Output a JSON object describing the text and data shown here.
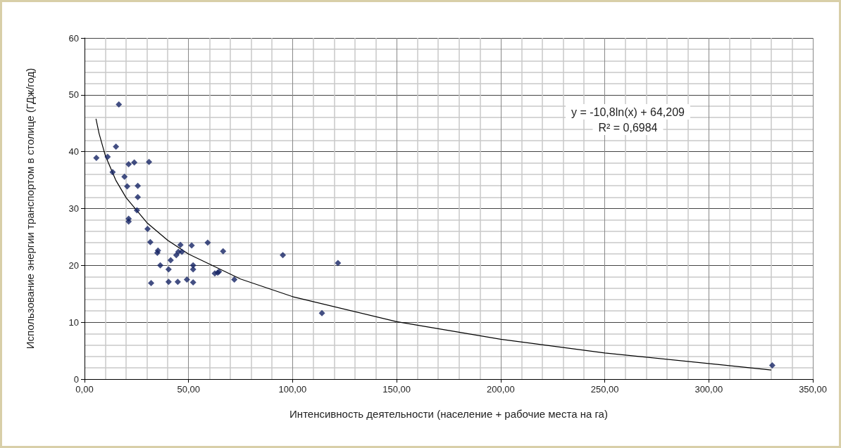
{
  "chart_data": {
    "type": "scatter",
    "xlabel": "Интенсивность деятельности (население + рабочие места на га)",
    "ylabel": "Использование энергии транспортом в столице (ГДж/год)",
    "annotations": [
      "y = -10,8ln(x) + 64,209",
      "R² = 0,6984"
    ],
    "series": [
      {
        "color": "#142364",
        "x": [
          5.7,
          11.1,
          16.5,
          15.1,
          13.5,
          19.2,
          20.5,
          21.2,
          23.9,
          31.0,
          25.6,
          25.6,
          25.2,
          21.2,
          21.2,
          30.3,
          31.6,
          35.3,
          35.0,
          36.4,
          32.0,
          41.4,
          40.4,
          40.4,
          44.8,
          49.2,
          52.2,
          44.1,
          45.1,
          46.1,
          46.8,
          51.5,
          52.2,
          52.2,
          59.2,
          66.6,
          62.6,
          64.0,
          64.6,
          72.0,
          95.3,
          121.8,
          114.1,
          330.5
        ],
        "values": [
          38.9,
          39.1,
          48.3,
          40.9,
          36.4,
          35.6,
          33.9,
          37.8,
          38.1,
          38.2,
          34.0,
          32.0,
          29.7,
          28.2,
          27.7,
          26.4,
          24.1,
          22.6,
          22.2,
          20.0,
          16.9,
          20.9,
          19.3,
          17.1,
          17.1,
          17.5,
          17.0,
          21.8,
          22.4,
          23.6,
          22.4,
          23.5,
          20.0,
          19.3,
          24.0,
          22.5,
          18.6,
          18.7,
          18.9,
          17.5,
          21.8,
          20.4,
          11.6,
          2.4
        ]
      },
      {
        "type": "line",
        "color": "#000000",
        "marker": "none",
        "x": [
          5.5,
          7,
          10,
          15,
          20,
          30,
          40,
          50,
          75,
          100,
          150,
          200,
          250,
          330
        ],
        "values": [
          45.8,
          43.2,
          39.3,
          35.0,
          31.9,
          27.5,
          24.4,
          22.0,
          17.6,
          14.5,
          10.1,
          7.0,
          4.6,
          1.6
        ]
      }
    ],
    "marker": "diamond",
    "grid": true,
    "xlim": [
      0,
      350
    ],
    "xticks": [
      {
        "value": 0,
        "label": "0,00"
      },
      {
        "value": 50,
        "label": "50,00"
      },
      {
        "value": 100,
        "label": "100,00"
      },
      {
        "value": 150,
        "label": "150,00"
      },
      {
        "value": 200,
        "label": "200,00"
      },
      {
        "value": 250,
        "label": "250,00"
      },
      {
        "value": 300,
        "label": "300,00"
      },
      {
        "value": 350,
        "label": "350,00"
      }
    ],
    "ylim": [
      0,
      60
    ],
    "yticks": [
      0,
      10,
      20,
      30,
      40,
      50,
      60
    ]
  }
}
